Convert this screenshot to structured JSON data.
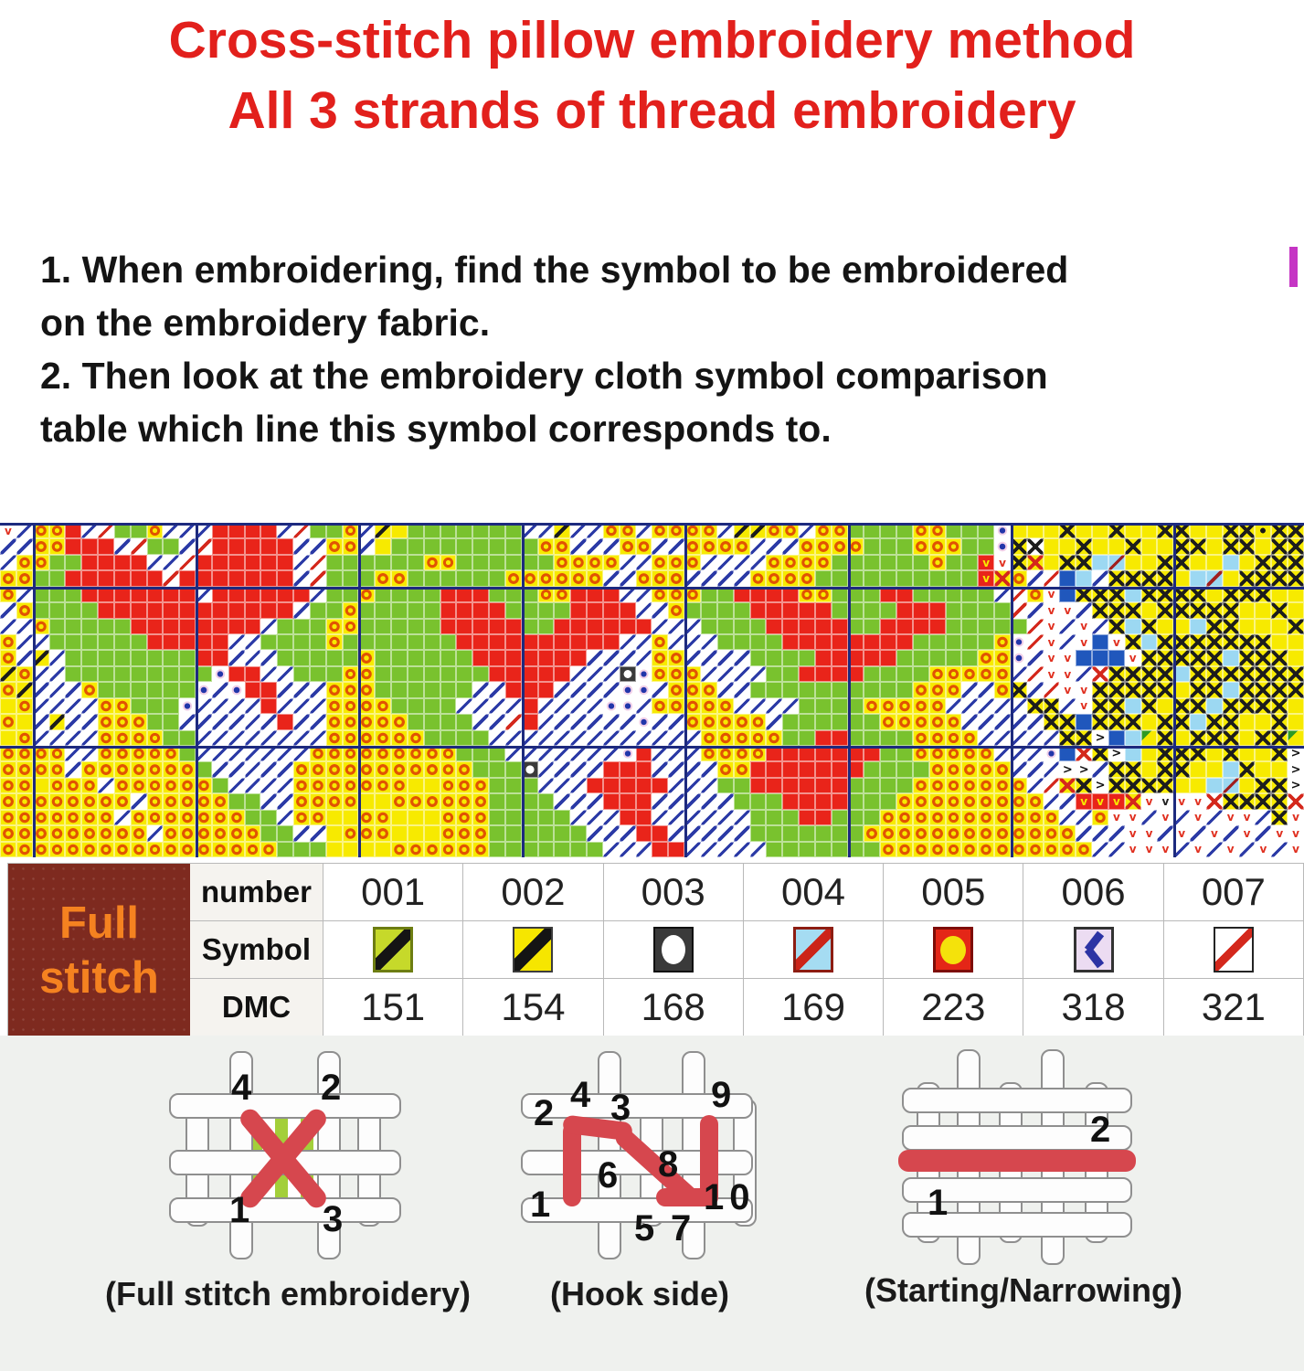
{
  "title": {
    "line1": "Cross-stitch pillow embroidery method",
    "line2": "All 3 strands of thread embroidery"
  },
  "instructions": {
    "lines": [
      "1. When embroidering, find the symbol to be embroidered",
      "on the embroidery fabric.",
      "2. Then look at the embroidery cloth symbol comparison",
      "table which line this symbol corresponds to."
    ]
  },
  "colors": {
    "title_red": "#e2201c",
    "chart_green": "#79c22e",
    "chart_red": "#e9241a",
    "chart_yellow": "#f7ea00",
    "chart_navy_gridline": "#1d2a7e",
    "chart_sky_blue": "#9cd8f2",
    "chart_blue_square": "#2057bc",
    "table_block_maroon": "#7e2a1f",
    "table_block_text_orange": "#f58220",
    "diagram_thread_red": "#d6474e",
    "bottom_background": "#eff1ee",
    "caret_magenta": "#c535c4"
  },
  "chart_pattern": {
    "columns": 80,
    "rows": 21,
    "cell_legend": {
      "G": "green square",
      "R": "red square",
      "y": "yellow square",
      "Y": "yellow square with orange circle",
      "S": "yellow square with black slash",
      "b": "white square with blue slash",
      "r": "white square with red slash",
      "v": "white square with red v",
      "t": "white square with black v",
      "u": "red square with yellow v",
      "X": "yellow square with black X",
      "x": "white square with black X",
      "K": "yellow square with red X",
      "e": "white square with red X",
      "c": "sky blue square",
      "C": "sky blue square with dark red slash",
      "D": "solid blue square",
      "d": "white square with blue dot",
      "w": "dark square with white circle",
      "k": "yellow square with black dot",
      "N": "yellow square with green corner triangle",
      ">": "yellow square with black chevron"
    },
    "major_line_cols": [
      2,
      12,
      22,
      32,
      42,
      52,
      62,
      72
    ],
    "major_line_rows": [
      0,
      4,
      14
    ],
    "grid": [
      "vbYYRbrGGYbbbRRRRbrGGYbSyGGGGGGGbbSbbYYbYYYYbSSYYbYYGGGGYYGGGdyyyXyyXyyXXyyXXkXX",
      "bbYYRRRbrGGbrRRRRRbbYYbyGGGGGGGGGYYbbbYYbbYYYYbbbYYYYGGGYYYGGdXxyyXyyXyyXXyXXyXX",
      "bYYGGRRRRbbrRRRRRRbrGGGGGGYYGGGGGGYYYYbbYYYbbbbYYYYGGGGGGYGGuvXKyXXcCyyXXyycyXXX",
      "YYGGRRRRRRrRRRRRRRbrGGGYYGGGGGGYYYYYYbbYYYbbbbYYYYGGGGGGGGGGuKYbrDcbXXXXycCyXXXX",
      "YbGGGRRRRRRRbRRRRRRbGGYGGGGRRRGGGYYRRRbbYYYGGRRRRYYGGGRRGGGGGbrYvDXXXcXXXXyXXXyy",
      "bYGGGGRRRRRRRRRRRRbGGYGGGGGRRRRGGGGRRRRbbYGGGGRRRRRGGGGRRRGGGGrbvvbXXXyXXXXXyyXy",
      "bbYGGGGGRRRRRRRRbGGGYYGGGGGRRRRRGGRRRRRRbbbGGGGRRRRRGGRRRRGGGGGrvbvbXcXyycXXyyyX",
      "YbbGGGGGGRRRRRbbGGGGYGGGGGGGRRRRRRRRRRbbYbbbGGGGRRRRRRRRGGGGGYdrvbvDvXcXXXXXXXyy",
      "YbSbGGGGGGGGRRbbbGGGGGYGGGGGGRRRRRRRbbbbYYbbbbGGGGRRRRRGGGGGYYdbvvDDDvXXXXXcXXXy",
      "SYbbGGGGGGGGGdRRbbGGGYYGGGGGGGRRRRRbbbwdYYYbbbbGGRRRRGGGGYYYYYbrvvbeXXXXcXXXXXXX",
      "YSbbbYGGGGGGdbdRRbbbYYYGGGGGGbbRRRbbbbddbYYYbbGGGGGGGGGGYYYbbYXbrvvXXXXXyXXcXXXX",
      "yYbbbbYYGGGdbbbbRbbbYYYYGGGGbbbbRbbbbddbYYYYYbbbbGGGGYYYYYbbbbbXXbvXXcXyXXcXXXXy",
      "YybSbbYYYGGbbbbbbRbbYYYYYGGGGbbrRbbbbbbdbbYYYYYbGGGGGGYYYYYbbbbbXXDXXXyXXcXXyyXy",
      "yYbbbbYYYYGGbbbbbbbbYYYYYYGGGGbbbbbbbbbbbbbYYYYYGGRRGGGGYYYYbbbbbXX>DcNXyXXXyXXN",
      "YYYYbbYYYYYGbbbbbbbYYYYYYYYYGGGbbbbbbbdRbbbYYYYRRRRRRRGGYYYYYbbbdDeX>cyXXXyXyyX>",
      "YYYYbYYYYYYYGbbbbbYYYYYYYYYYYGGGwbbbbRRRbbbbYYRRRRRRRGGGGYYYYYbbb>>bXXyXXyycXyy>",
      "YYyYYYbYYYYYYGbbbbYYYYYYYyyYYYGGGbbbRRRRRbbbGGRRRRRRGGGGYYYYYYYbrKX>XXXXyycCyXX>",
      "YYYYYYYYbYYYYYGGbbYYYYyyYYYYYYGGGGbbbRRRbbbbbGGGRRRRGGGYYYYYYYYYbbuuuKvtvveXXXXe",
      "YYYYYYYbYYYYYYYGGbYYyyYYyyyYYYGGGGGbbbRRbbbbbbGGGRRGGGYYYYYYYYYYYbbYvvbvbvbvvbXv",
      "YYYYYYYYYbYYYYYYGGbbyYYYyyyYYYGGGGGGbbbRRbbbbbGGGGGGGYYYYYYYYYYYYYbbbvvbvbvbvbvv",
      "YYYYYYYYYYYYYYYYYGGGyyyyYYYYYYGGGGGGGbbbRRbbbbbGGGGGGGYYYYYYYYYYYYYbbvvvbvbvbvbv"
    ]
  },
  "symbol_table": {
    "group_label_lines": [
      "Full",
      "stitch"
    ],
    "row_labels": [
      "number",
      "Symbol",
      "DMC"
    ],
    "columns": [
      {
        "number": "001",
        "dmc": "151",
        "symbol": "chartreuse-square-black-slash"
      },
      {
        "number": "002",
        "dmc": "154",
        "symbol": "yellow-square-black-slash"
      },
      {
        "number": "003",
        "dmc": "168",
        "symbol": "black-square-white-circle"
      },
      {
        "number": "004",
        "dmc": "169",
        "symbol": "skyblue-square-red-slash"
      },
      {
        "number": "005",
        "dmc": "223",
        "symbol": "red-square-yellow-circle"
      },
      {
        "number": "006",
        "dmc": "318",
        "symbol": "lavender-square-blue-chevron"
      },
      {
        "number": "007",
        "dmc": "321",
        "symbol": "white-square-red-slash"
      }
    ]
  },
  "stitch_diagrams": [
    {
      "caption": "(Full stitch embroidery)",
      "labels": [
        "4",
        "2",
        "1",
        "3"
      ]
    },
    {
      "caption": "(Hook side)",
      "labels": [
        "2",
        "4",
        "3",
        "9",
        "6",
        "8",
        "1",
        "5",
        "7",
        "10"
      ]
    },
    {
      "caption": "(Starting/Narrowing)",
      "labels": [
        "2",
        "1"
      ]
    }
  ]
}
